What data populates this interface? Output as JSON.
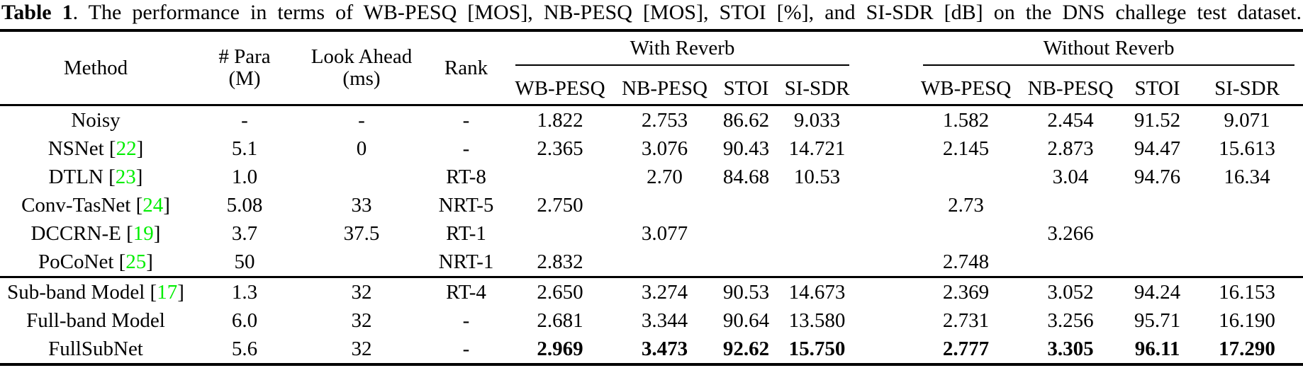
{
  "caption": {
    "label": "Table 1",
    "text": ". The performance in terms of WB-PESQ [MOS], NB-PESQ [MOS], STOI [%], and SI-SDR [dB] on the DNS challege test dataset."
  },
  "colors": {
    "citation_green": "#00ee00",
    "text_black": "#000000",
    "background": "#ffffff"
  },
  "table": {
    "citation_open": "[",
    "citation_close": "]",
    "headers": {
      "method": "Method",
      "para_line1": "# Para",
      "para_line2": "(M)",
      "look_ahead_line1": "Look Ahead",
      "look_ahead_line2": "(ms)",
      "rank": "Rank",
      "group_with": "With Reverb",
      "group_without": "Without Reverb",
      "metrics": [
        "WB-PESQ",
        "NB-PESQ",
        "STOI",
        "SI-SDR"
      ]
    },
    "sections": [
      {
        "name": "baselines",
        "rows": [
          {
            "method": "Noisy",
            "cite": "",
            "para": "-",
            "look_ahead": "-",
            "rank": "-",
            "with_reverb": [
              "1.822",
              "2.753",
              "86.62",
              "9.033"
            ],
            "without_reverb": [
              "1.582",
              "2.454",
              "91.52",
              "9.071"
            ],
            "bold": false
          },
          {
            "method": "NSNet",
            "cite": "22",
            "para": "5.1",
            "look_ahead": "0",
            "rank": "-",
            "with_reverb": [
              "2.365",
              "3.076",
              "90.43",
              "14.721"
            ],
            "without_reverb": [
              "2.145",
              "2.873",
              "94.47",
              "15.613"
            ],
            "bold": false
          },
          {
            "method": "DTLN",
            "cite": "23",
            "para": "1.0",
            "look_ahead": "",
            "rank": "RT-8",
            "with_reverb": [
              "",
              "2.70",
              "84.68",
              "10.53"
            ],
            "without_reverb": [
              "",
              "3.04",
              "94.76",
              "16.34"
            ],
            "bold": false
          },
          {
            "method": "Conv-TasNet",
            "cite": "24",
            "para": "5.08",
            "look_ahead": "33",
            "rank": "NRT-5",
            "with_reverb": [
              "2.750",
              "",
              "",
              ""
            ],
            "without_reverb": [
              "2.73",
              "",
              "",
              ""
            ],
            "bold": false
          },
          {
            "method": "DCCRN-E",
            "cite": "19",
            "para": "3.7",
            "look_ahead": "37.5",
            "rank": "RT-1",
            "with_reverb": [
              "",
              "3.077",
              "",
              ""
            ],
            "without_reverb": [
              "",
              "3.266",
              "",
              ""
            ],
            "bold": false
          },
          {
            "method": "PoCoNet",
            "cite": "25",
            "para": "50",
            "look_ahead": "",
            "rank": "NRT-1",
            "with_reverb": [
              "2.832",
              "",
              "",
              ""
            ],
            "without_reverb": [
              "2.748",
              "",
              "",
              ""
            ],
            "bold": false
          }
        ]
      },
      {
        "name": "proposed",
        "rows": [
          {
            "method": "Sub-band Model",
            "cite": "17",
            "para": "1.3",
            "look_ahead": "32",
            "rank": "RT-4",
            "with_reverb": [
              "2.650",
              "3.274",
              "90.53",
              "14.673"
            ],
            "without_reverb": [
              "2.369",
              "3.052",
              "94.24",
              "16.153"
            ],
            "bold": false
          },
          {
            "method": "Full-band Model",
            "cite": "",
            "para": "6.0",
            "look_ahead": "32",
            "rank": "-",
            "with_reverb": [
              "2.681",
              "3.344",
              "90.64",
              "13.580"
            ],
            "without_reverb": [
              "2.731",
              "3.256",
              "95.71",
              "16.190"
            ],
            "bold": false
          },
          {
            "method": "FullSubNet",
            "cite": "",
            "para": "5.6",
            "look_ahead": "32",
            "rank": "-",
            "with_reverb": [
              "2.969",
              "3.473",
              "92.62",
              "15.750"
            ],
            "without_reverb": [
              "2.777",
              "3.305",
              "96.11",
              "17.290"
            ],
            "bold": true
          }
        ]
      }
    ]
  }
}
